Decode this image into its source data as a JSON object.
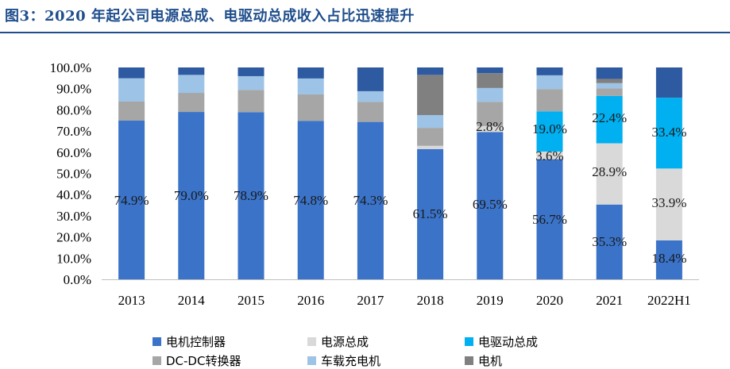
{
  "title": "图3：2020 年起公司电源总成、电驱动总成收入占比迅速提升",
  "chart_data": {
    "type": "bar",
    "stacked": true,
    "categories": [
      "2013",
      "2014",
      "2015",
      "2016",
      "2017",
      "2018",
      "2019",
      "2020",
      "2021",
      "2022H1"
    ],
    "ylim": [
      0,
      100
    ],
    "yticks": [
      "0.0%",
      "10.0%",
      "20.0%",
      "30.0%",
      "40.0%",
      "50.0%",
      "60.0%",
      "70.0%",
      "80.0%",
      "90.0%",
      "100.0%"
    ],
    "legend_position": "bottom",
    "series": [
      {
        "name": "电机控制器",
        "color": "#3a73c8",
        "values": [
          74.9,
          79.0,
          78.9,
          74.8,
          74.3,
          61.5,
          69.5,
          56.7,
          35.3,
          18.4
        ]
      },
      {
        "name": "电源总成",
        "color": "#d9d9d9",
        "values": [
          0,
          0,
          0,
          0,
          0,
          1.5,
          2.8,
          3.6,
          28.9,
          33.9
        ]
      },
      {
        "name": "电驱动总成",
        "color": "#00b0f0",
        "values": [
          0,
          0,
          0,
          0,
          0,
          0,
          0,
          19.0,
          22.4,
          33.4
        ]
      },
      {
        "name": "DC-DC转换器",
        "color": "#a6a6a6",
        "values": [
          9.0,
          9.0,
          10.5,
          12.5,
          9.5,
          8.5,
          11.5,
          10.5,
          3.5,
          0
        ]
      },
      {
        "name": "车载充电机",
        "color": "#9dc3e6",
        "values": [
          11.0,
          8.5,
          6.5,
          7.5,
          5.0,
          6.0,
          6.5,
          6.5,
          2.5,
          0
        ]
      },
      {
        "name": "电机",
        "color": "#808080",
        "values": [
          0,
          0,
          0,
          0,
          0,
          19.0,
          7.0,
          0,
          2.0,
          0
        ]
      },
      {
        "name": "",
        "color": "#2d5aa0",
        "values": [
          5.1,
          3.5,
          4.1,
          5.2,
          11.2,
          3.5,
          2.7,
          3.7,
          5.4,
          14.3
        ]
      }
    ],
    "data_labels": [
      {
        "category": "2013",
        "text": "74.9%"
      },
      {
        "category": "2014",
        "text": "79.0%"
      },
      {
        "category": "2015",
        "text": "78.9%"
      },
      {
        "category": "2016",
        "text": "74.8%"
      },
      {
        "category": "2017",
        "text": "74.3%"
      },
      {
        "category": "2018",
        "text": "61.5%"
      },
      {
        "category": "2019",
        "text": "69.5%"
      },
      {
        "category": "2019",
        "text": "2.8%"
      },
      {
        "category": "2020",
        "text": "56.7%"
      },
      {
        "category": "2020",
        "text": "3.6%"
      },
      {
        "category": "2020",
        "text": "19.0%"
      },
      {
        "category": "2021",
        "text": "35.3%"
      },
      {
        "category": "2021",
        "text": "28.9%"
      },
      {
        "category": "2021",
        "text": "22.4%"
      },
      {
        "category": "2022H1",
        "text": "18.4%"
      },
      {
        "category": "2022H1",
        "text": "33.9%"
      },
      {
        "category": "2022H1",
        "text": "33.4%"
      }
    ]
  }
}
